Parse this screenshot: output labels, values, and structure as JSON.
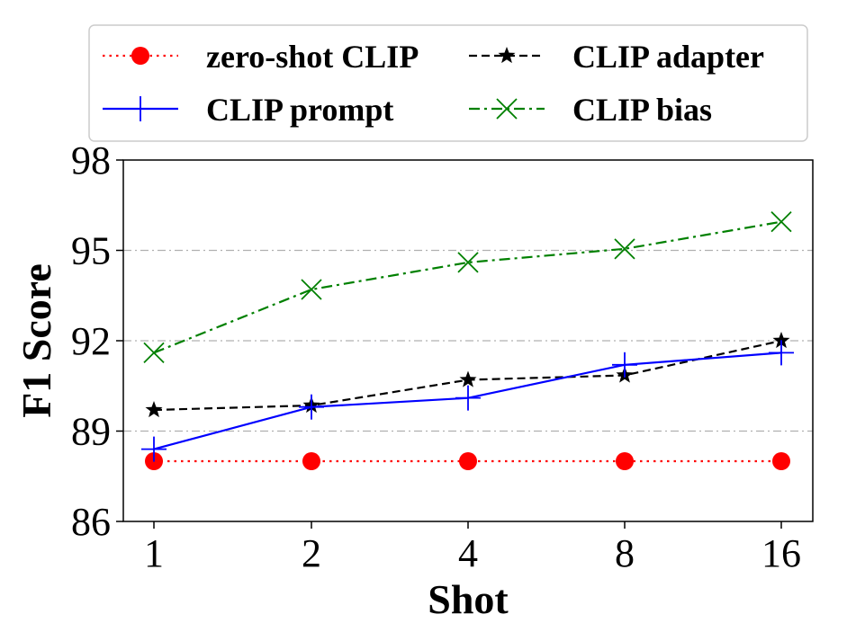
{
  "chart_data": {
    "type": "line",
    "categories": [
      "1",
      "2",
      "4",
      "8",
      "16"
    ],
    "xlabel": "Shot",
    "ylabel": "F1 Score",
    "ylim": [
      86,
      98
    ],
    "yticks": [
      "86",
      "89",
      "92",
      "95",
      "98"
    ],
    "grid": "horizontal dash-dot",
    "legend_position": "top",
    "series": [
      {
        "name": "zero-shot CLIP",
        "values": [
          88.0,
          88.0,
          88.0,
          88.0,
          88.0
        ],
        "color": "#ff0000",
        "marker": "circle",
        "line": "dotted"
      },
      {
        "name": "CLIP adapter",
        "values": [
          89.7,
          89.85,
          90.7,
          90.85,
          92.0
        ],
        "color": "#000000",
        "marker": "star",
        "line": "dashed"
      },
      {
        "name": "CLIP prompt",
        "values": [
          88.4,
          89.8,
          90.1,
          91.2,
          91.6
        ],
        "color": "#0000ff",
        "marker": "plus",
        "line": "solid"
      },
      {
        "name": "CLIP bias",
        "values": [
          91.6,
          93.7,
          94.6,
          95.05,
          95.95
        ],
        "color": "#008000",
        "marker": "x",
        "line": "dashdot"
      }
    ]
  }
}
